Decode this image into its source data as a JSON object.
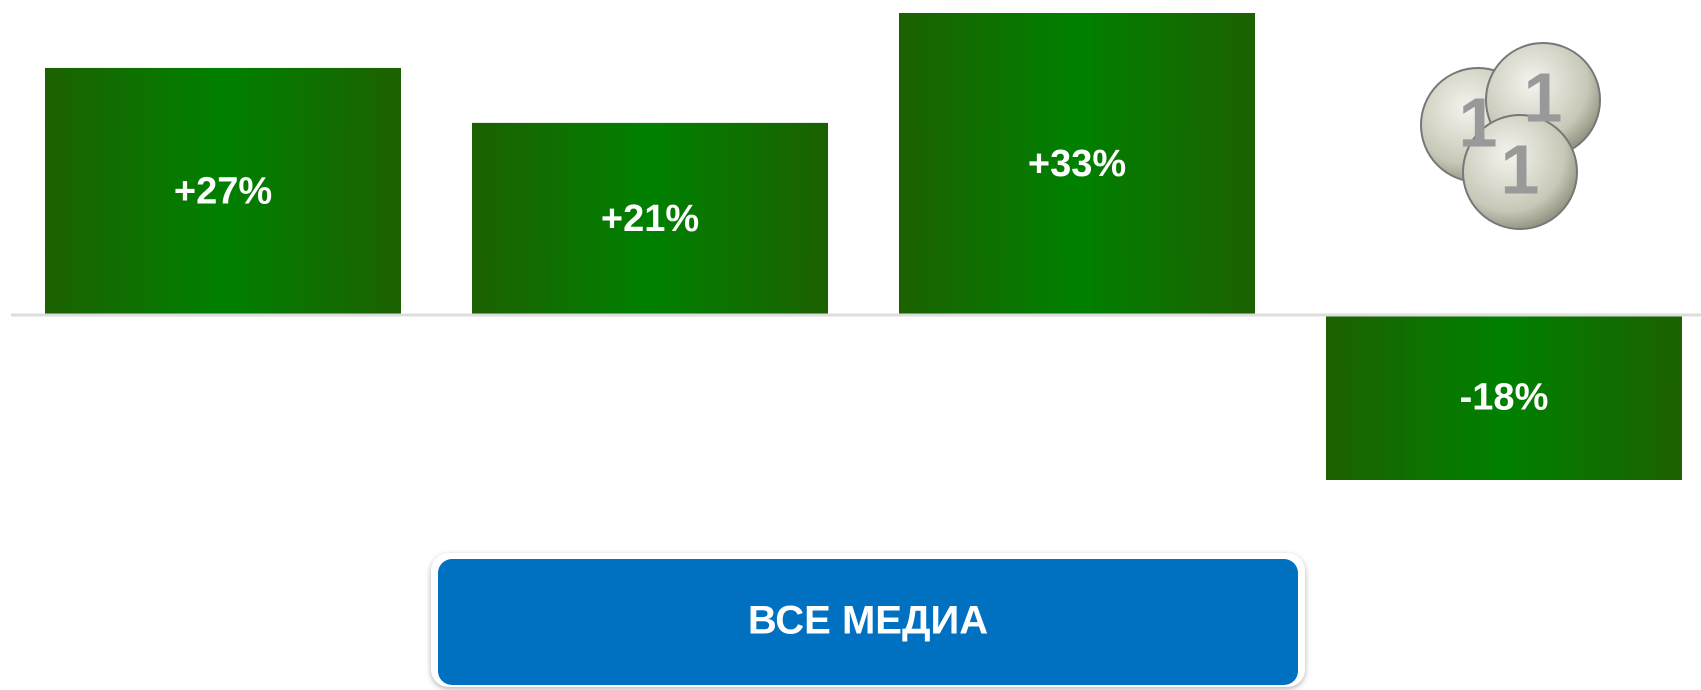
{
  "chart_data": {
    "type": "bar",
    "values": [
      27,
      21,
      33,
      -18
    ],
    "value_labels": [
      "+27%",
      "+21%",
      "+33%",
      "-18%"
    ],
    "color": "#1c6100",
    "ylim": [
      -18,
      33
    ]
  },
  "button": {
    "label": "ВСЕ МЕДИА"
  }
}
